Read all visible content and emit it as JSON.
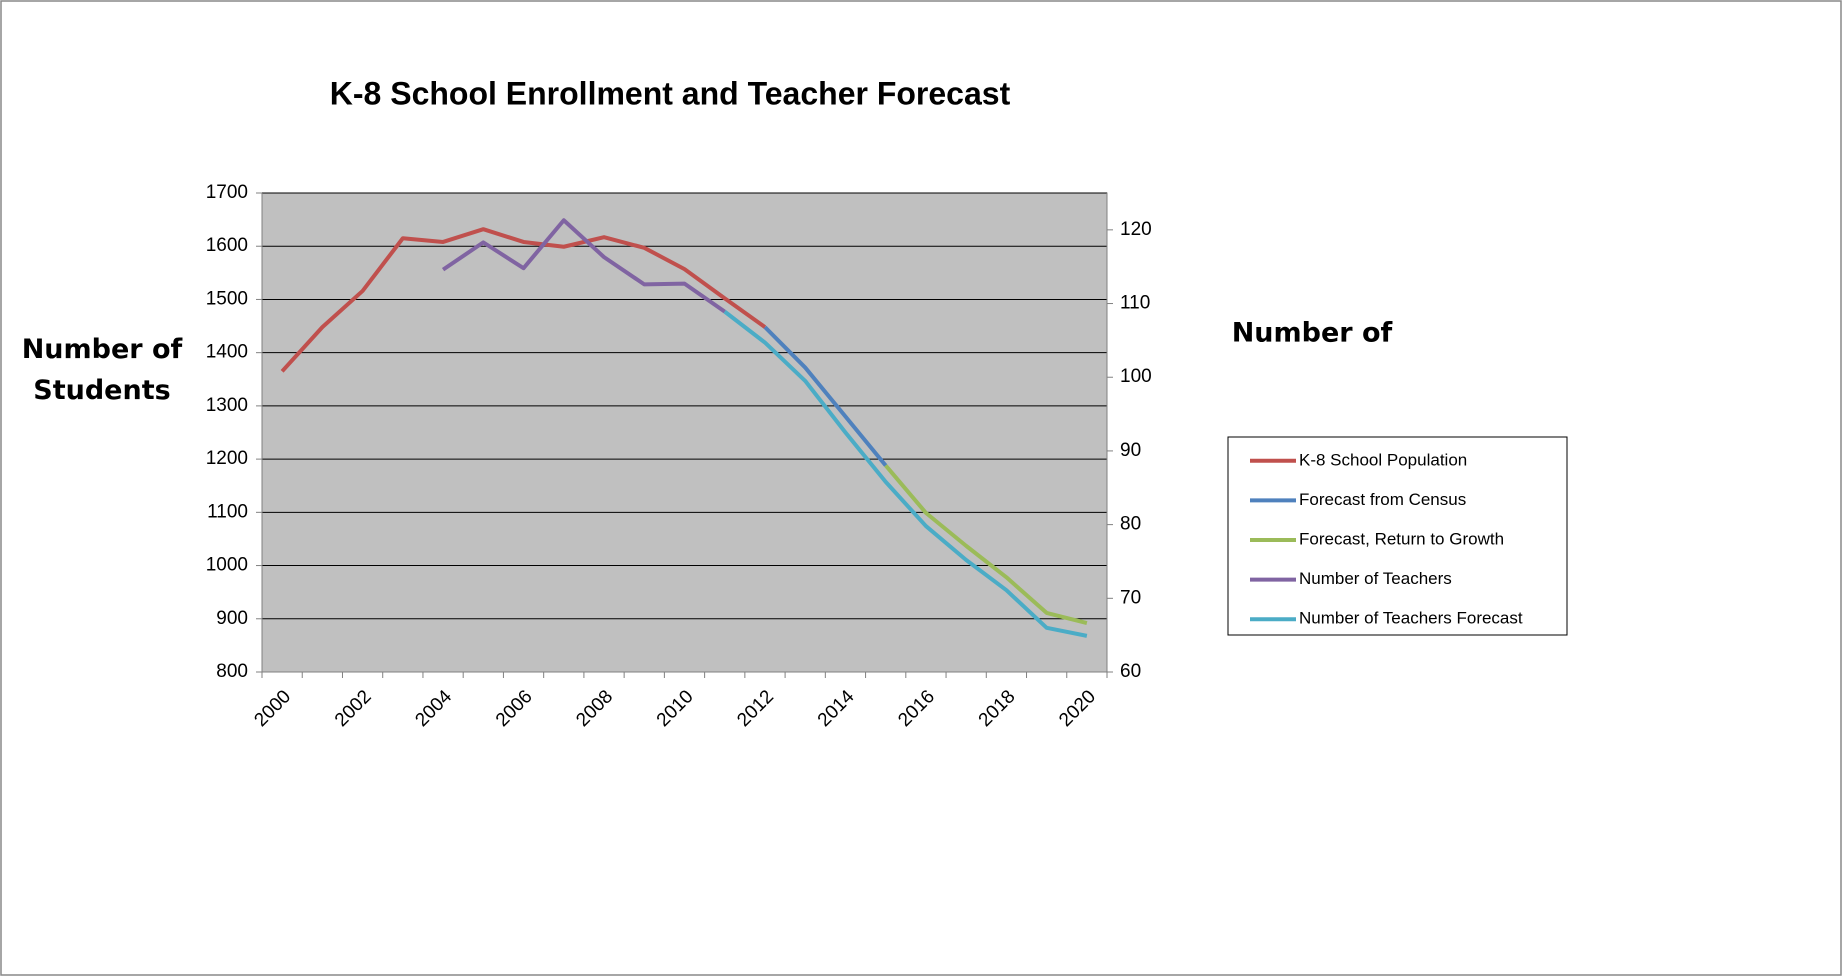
{
  "chart_data": {
    "type": "line",
    "title": "K-8 School Enrollment and Teacher Forecast",
    "y_label": "Number of Students",
    "y2_label": "Number of",
    "categories": [
      "2000",
      null,
      "2002",
      null,
      "2004",
      null,
      "2006",
      null,
      "2008",
      null,
      "2010",
      null,
      "2012",
      null,
      "2014",
      null,
      "2016",
      null,
      "2018",
      null,
      "2020"
    ],
    "ylim": [
      800,
      1700
    ],
    "yticks": [
      800,
      900,
      1000,
      1100,
      1200,
      1300,
      1400,
      1500,
      1600,
      1700
    ],
    "y2lim": [
      60,
      125
    ],
    "y2ticks": [
      60,
      70,
      80,
      90,
      100,
      110,
      120
    ],
    "grid": true,
    "legend": "right",
    "background": "#c0c0c0",
    "series": [
      {
        "name": "K-8 School Population",
        "color": "#c0504d",
        "values": [
          1365,
          1448,
          1516,
          1615,
          1608,
          1632,
          1608,
          1599,
          1617,
          1597,
          1557,
          1502,
          1448,
          null,
          null,
          null,
          null,
          null,
          null,
          null,
          null
        ]
      },
      {
        "name": "Forecast from Census",
        "color": "#4f81bd",
        "values": [
          null,
          null,
          null,
          null,
          null,
          null,
          null,
          null,
          null,
          null,
          null,
          null,
          1448,
          1372,
          1280,
          1188,
          null,
          null,
          null,
          null,
          null
        ]
      },
      {
        "name": "Forecast, Return to Growth",
        "color": "#9bbb59",
        "values": [
          null,
          null,
          null,
          null,
          null,
          null,
          null,
          null,
          null,
          null,
          null,
          null,
          null,
          null,
          null,
          1188,
          1099,
          1037,
          978,
          911,
          892
        ]
      },
      {
        "name": "Number of Teachers",
        "color": "#8064a2",
        "axis": "y2",
        "values": [
          null,
          null,
          null,
          null,
          114.6,
          118.3,
          114.8,
          121.3,
          116.3,
          112.6,
          112.7,
          108.9,
          null,
          null,
          null,
          null,
          null,
          null,
          null,
          null,
          null
        ]
      },
      {
        "name": "Number of Teachers Forecast",
        "color": "#4bacc6",
        "axis": "y2",
        "values": [
          null,
          null,
          null,
          null,
          null,
          null,
          null,
          null,
          null,
          null,
          null,
          108.9,
          104.7,
          99.5,
          92.5,
          85.8,
          79.8,
          75.2,
          71.1,
          66,
          64.9
        ]
      }
    ]
  }
}
